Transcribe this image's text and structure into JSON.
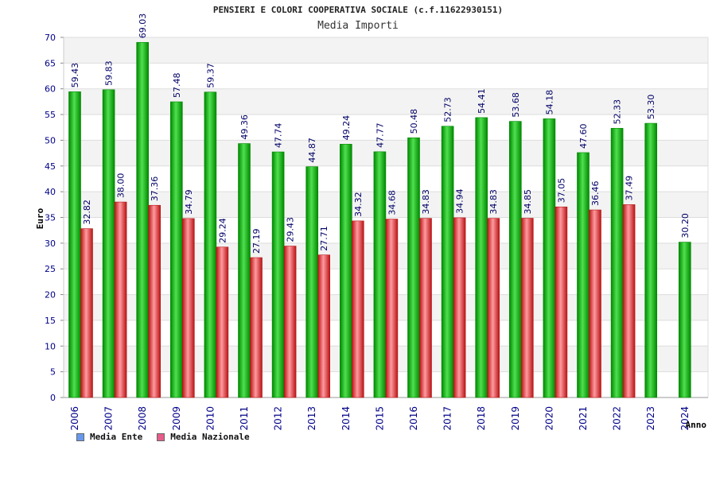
{
  "chart_data": {
    "type": "bar",
    "title": "PENSIERI E COLORI COOPERATIVA SOCIALE (c.f.11622930151)",
    "subtitle": "Media Importi",
    "ylabel": "Euro",
    "xlabel": "Anno",
    "ylim": [
      0,
      70
    ],
    "yticks": [
      "0",
      "5",
      "10",
      "15",
      "20",
      "25",
      "30",
      "35",
      "40",
      "45",
      "50",
      "55",
      "60",
      "65",
      "70"
    ],
    "categories": [
      "2006",
      "2007",
      "2008",
      "2009",
      "2010",
      "2011",
      "2012",
      "2013",
      "2014",
      "2015",
      "2016",
      "2017",
      "2018",
      "2019",
      "2020",
      "2021",
      "2022",
      "2023",
      "2024"
    ],
    "series": [
      {
        "name": "Media Ente",
        "values": [
          59.43,
          59.83,
          69.03,
          57.48,
          59.37,
          49.36,
          47.74,
          44.87,
          49.24,
          47.77,
          50.48,
          52.73,
          54.41,
          53.68,
          54.18,
          47.6,
          52.33,
          53.3,
          30.2
        ],
        "labels": [
          "59.43",
          "59.83",
          "69.03",
          "57.48",
          "59.37",
          "49.36",
          "47.74",
          "44.87",
          "49.24",
          "47.77",
          "50.48",
          "52.73",
          "54.41",
          "53.68",
          "54.18",
          "47.60",
          "52.33",
          "53.30",
          "30.20"
        ]
      },
      {
        "name": "Media Nazionale",
        "values": [
          32.82,
          38.0,
          37.36,
          34.79,
          29.24,
          27.19,
          29.43,
          27.71,
          34.32,
          34.68,
          34.83,
          34.94,
          34.83,
          34.85,
          37.05,
          36.46,
          37.49,
          null,
          null
        ],
        "labels": [
          "32.82",
          "38.00",
          "37.36",
          "34.79",
          "29.24",
          "27.19",
          "29.43",
          "27.71",
          "34.32",
          "34.68",
          "34.83",
          "34.94",
          "34.83",
          "34.85",
          "37.05",
          "36.46",
          "37.49",
          "",
          ""
        ]
      }
    ],
    "legend": [
      {
        "name": "Media Ente",
        "color": "#6699ee"
      },
      {
        "name": "Media Nazionale",
        "color": "#e65c8a"
      }
    ],
    "colors": {
      "ente_light": "#55e055",
      "ente_mid": "#11b811",
      "ente_dark": "#008800",
      "naz_light": "#ff9aa0",
      "naz_mid": "#e83838",
      "naz_dark": "#b81414",
      "axis_text": "#000088",
      "label_text": "#000066",
      "band_light": "#f3f3f3",
      "band_white": "#ffffff"
    }
  }
}
